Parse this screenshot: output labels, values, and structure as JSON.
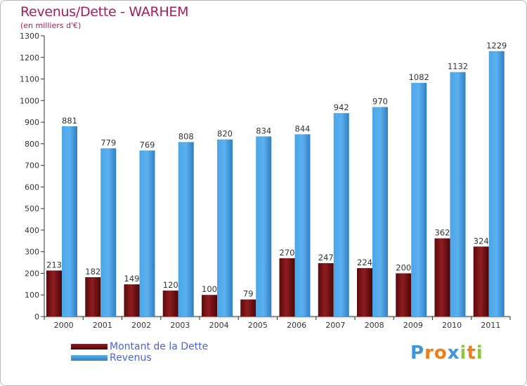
{
  "title": "Revenus/Dette - WARHEM",
  "subtitle": "(en milliers d'€)",
  "colors": {
    "dette": "#7a1416",
    "revenus": "#3d96db",
    "title": "#a61d5d",
    "legend_text": "#4a63d6"
  },
  "logo": {
    "text": "Proxiti",
    "letters": [
      "P",
      "r",
      "o",
      "x",
      "i",
      "t",
      "i"
    ],
    "colors": [
      "#3d96db",
      "#f07d1a",
      "#f07d1a",
      "#3d96db",
      "#8cc63e",
      "#f07d1a",
      "#8cc63e"
    ]
  },
  "chart_data": {
    "type": "bar",
    "categories": [
      "2000",
      "2001",
      "2002",
      "2003",
      "2004",
      "2005",
      "2006",
      "2007",
      "2008",
      "2009",
      "2010",
      "2011"
    ],
    "series": [
      {
        "name": "Montant de la Dette",
        "values": [
          213,
          182,
          149,
          120,
          100,
          79,
          270,
          247,
          224,
          200,
          362,
          324
        ]
      },
      {
        "name": "Revenus",
        "values": [
          881,
          779,
          769,
          808,
          820,
          834,
          844,
          942,
          970,
          1082,
          1132,
          1229
        ]
      }
    ],
    "ylim": [
      0,
      1300
    ],
    "yticks": [
      0,
      100,
      200,
      300,
      400,
      500,
      600,
      700,
      800,
      900,
      1000,
      1100,
      1200,
      1300
    ],
    "grid": false,
    "legend": "bottom-left"
  }
}
